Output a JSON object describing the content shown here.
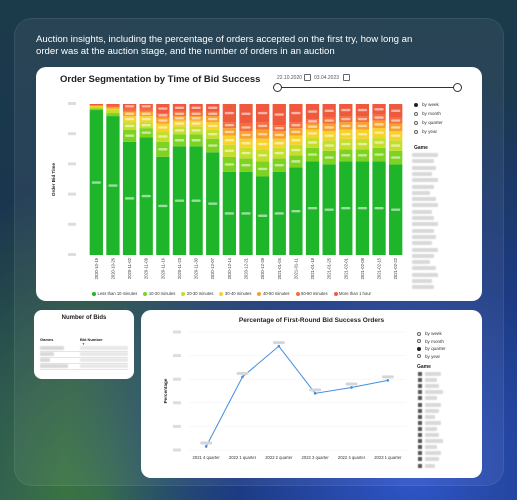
{
  "headline": "Auction insights, including the percentage of orders accepted on the first try, how long an order was at the auction stage, and the number of orders in an auction",
  "segmentation": {
    "title": "Order Segmentation by Time of Bid Success",
    "date_from": "22.10.2020",
    "date_to": "03.04.2023",
    "ylabel": "Order Bid Time",
    "period_options": [
      "by week",
      "by month",
      "by quarter",
      "by year"
    ],
    "period_selected": 0,
    "filter_title": "Game",
    "legend": [
      {
        "label": "Less than 10 minutes",
        "color": "#1fb52a"
      },
      {
        "label": "10-20 minutes",
        "color": "#7ed321"
      },
      {
        "label": "20-30 minutes",
        "color": "#c5de2b"
      },
      {
        "label": "30-40 minutes",
        "color": "#f6d22a"
      },
      {
        "label": "40-50 minutes",
        "color": "#f7a02b"
      },
      {
        "label": "50-60 minutes",
        "color": "#f46d3a"
      },
      {
        "label": "More than 1 hour",
        "color": "#ef5a3e"
      }
    ]
  },
  "chart_data": [
    {
      "type": "bar",
      "title": "Order Segmentation by Time of Bid Success",
      "ylabel": "Order Bid Time",
      "stacked": true,
      "normalized": true,
      "ylim": [
        0,
        100
      ],
      "categories": [
        "2020-10-19",
        "2020-10-26",
        "2020-11-02",
        "2020-11-09",
        "2020-11-16",
        "2020-11-23",
        "2020-11-30",
        "2020-12-07",
        "2020-12-14",
        "2020-12-21",
        "2020-12-28",
        "2021-01-04",
        "2021-01-11",
        "2021-01-18",
        "2021-01-25",
        "2021-02-01",
        "2021-02-08",
        "2021-02-15",
        "2021-02-22"
      ],
      "series": [
        {
          "name": "Less than 10 minutes",
          "values": [
            96,
            92,
            75,
            78,
            65,
            72,
            72,
            68,
            55,
            55,
            52,
            55,
            58,
            62,
            60,
            62,
            62,
            62,
            60
          ]
        },
        {
          "name": "10-20 minutes",
          "values": [
            1,
            2,
            8,
            6,
            10,
            8,
            8,
            9,
            10,
            9,
            10,
            9,
            8,
            9,
            9,
            8,
            8,
            9,
            9
          ]
        },
        {
          "name": "20-30 minutes",
          "values": [
            1,
            2,
            5,
            4,
            7,
            5,
            5,
            6,
            8,
            7,
            8,
            7,
            7,
            7,
            7,
            7,
            7,
            7,
            7
          ]
        },
        {
          "name": "30-40 minutes",
          "values": [
            1,
            1,
            4,
            4,
            5,
            4,
            4,
            5,
            6,
            6,
            7,
            6,
            6,
            5,
            6,
            6,
            6,
            6,
            6
          ]
        },
        {
          "name": "40-50 minutes",
          "values": [
            0,
            1,
            3,
            3,
            4,
            3,
            3,
            4,
            5,
            5,
            6,
            5,
            5,
            4,
            5,
            5,
            5,
            5,
            5
          ]
        },
        {
          "name": "50-60 minutes",
          "values": [
            0,
            1,
            2,
            2,
            3,
            3,
            3,
            3,
            4,
            5,
            5,
            4,
            4,
            3,
            4,
            4,
            4,
            4,
            4
          ]
        },
        {
          "name": "More than 1 hour",
          "values": [
            1,
            1,
            3,
            3,
            6,
            5,
            5,
            5,
            12,
            13,
            12,
            14,
            12,
            10,
            9,
            8,
            8,
            7,
            9
          ]
        }
      ]
    },
    {
      "type": "line",
      "title": "Percentage of First-Round Bid Success Orders",
      "ylabel": "Percentage",
      "categories": [
        "2021 4 quarter",
        "2022 1 quarter",
        "2022 2 quarter",
        "2022 3 quarter",
        "2022 4 quarter",
        "2023 1 quarter"
      ],
      "series": [
        {
          "values": [
            3,
            62,
            88,
            48,
            53,
            59
          ]
        }
      ],
      "ylim": [
        0,
        100
      ]
    }
  ],
  "bids": {
    "title": "Number of Bids",
    "col_game": "Games",
    "col_number": "Bid Number"
  },
  "first_round": {
    "title": "Percentage of First-Round Bid Success Orders",
    "ylabel": "Percentage",
    "period_options": [
      "by week",
      "by month",
      "by quarter",
      "by year"
    ],
    "period_selected": 2,
    "filter_title": "Game"
  }
}
